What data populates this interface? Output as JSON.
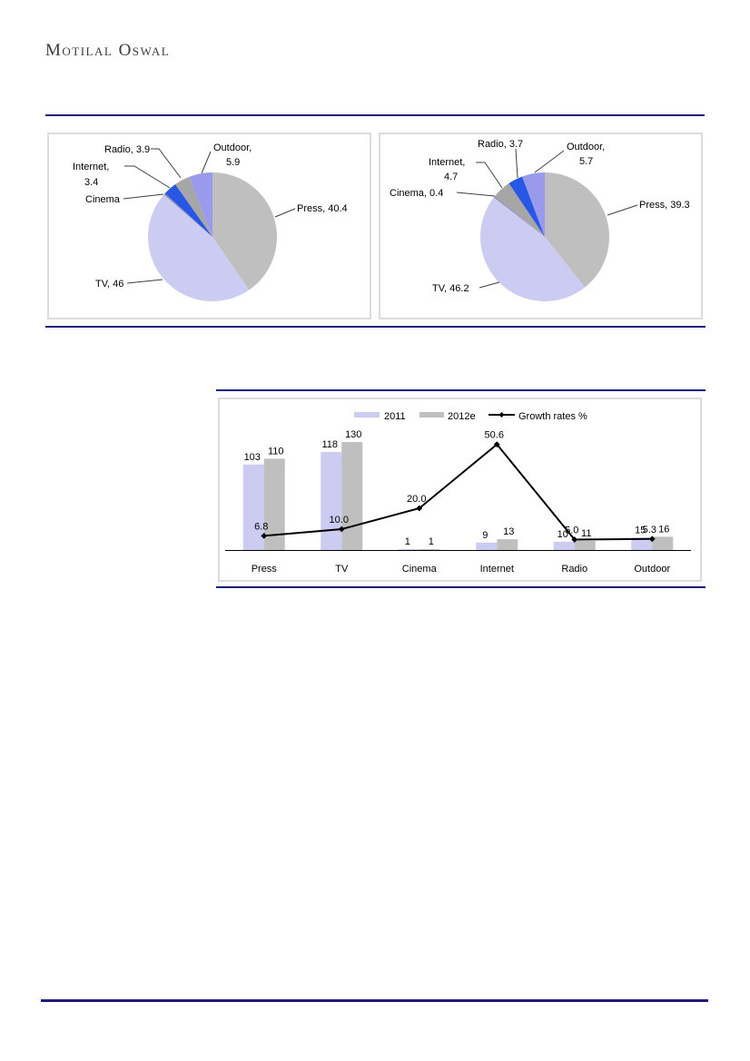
{
  "page": {
    "brand": "Motilal Oswal"
  },
  "colors": {
    "navy": "#1c1a7e",
    "lavender": "#ccccf2",
    "gray": "#bfbfbf",
    "gray_small": "#a6a6a6",
    "blue": "#2857e4",
    "periwinkle": "#9a9aec",
    "cinema_dark": "#8f8fb4",
    "box_border": "#dcdcdc",
    "leader": "#404040",
    "text": "#000000",
    "logo_text": "#3b3b3f"
  },
  "chart_data": [
    {
      "id": "pie_2011",
      "type": "pie",
      "legend_position": "none",
      "slices": [
        {
          "name": "Press",
          "value": 40.4,
          "label_lines": [
            "Press, 40.4"
          ],
          "color": "gray"
        },
        {
          "name": "TV",
          "value": 46.0,
          "label_lines": [
            "TV, 46"
          ],
          "color": "lavender"
        },
        {
          "name": "Cinema",
          "value": 0.4,
          "label_lines": [
            "Cinema"
          ],
          "color": "cinema_dark"
        },
        {
          "name": "Internet",
          "value": 3.4,
          "label_lines": [
            "Internet,",
            "3.4"
          ],
          "color": "blue"
        },
        {
          "name": "Radio",
          "value": 3.9,
          "label_lines": [
            "Radio, 3.9"
          ],
          "color": "gray_small"
        },
        {
          "name": "Outdoor",
          "value": 5.9,
          "label_lines": [
            "Outdoor,",
            "5.9"
          ],
          "color": "periwinkle"
        }
      ]
    },
    {
      "id": "pie_2012e",
      "type": "pie",
      "legend_position": "none",
      "slices": [
        {
          "name": "Press",
          "value": 39.3,
          "label_lines": [
            "Press, 39.3"
          ],
          "color": "gray"
        },
        {
          "name": "TV",
          "value": 46.2,
          "label_lines": [
            "TV, 46.2"
          ],
          "color": "lavender"
        },
        {
          "name": "Cinema",
          "value": 0.4,
          "label_lines": [
            "Cinema, 0.4"
          ],
          "color": "cinema_dark"
        },
        {
          "name": "Internet",
          "value": 4.7,
          "label_lines": [
            "Internet,",
            "4.7"
          ],
          "color": "gray_small"
        },
        {
          "name": "Radio",
          "value": 3.7,
          "label_lines": [
            "Radio, 3.7"
          ],
          "color": "blue"
        },
        {
          "name": "Outdoor",
          "value": 5.7,
          "label_lines": [
            "Outdoor,",
            "5.7"
          ],
          "color": "periwinkle"
        }
      ]
    },
    {
      "id": "combo",
      "type": "bar",
      "categories": [
        "Press",
        "TV",
        "Cinema",
        "Internet",
        "Radio",
        "Outdoor"
      ],
      "series": [
        {
          "name": "2011",
          "type": "bar",
          "color": "lavender",
          "values": [
            103,
            118,
            1,
            9,
            10,
            15
          ],
          "labels": [
            "103",
            "118",
            "1",
            "9",
            "10",
            "15"
          ]
        },
        {
          "name": "2012e",
          "type": "bar",
          "color": "gray",
          "values": [
            110,
            130,
            1,
            13,
            11,
            16
          ],
          "labels": [
            "110",
            "130",
            "1",
            "13",
            "11",
            "16"
          ]
        },
        {
          "name": "Growth rates %",
          "type": "line",
          "color": "text",
          "values": [
            6.8,
            10.0,
            20.0,
            50.6,
            5.0,
            5.3
          ],
          "labels": [
            "6.8",
            "10.0",
            "20.0",
            "50.6",
            "5.0",
            "5.3"
          ]
        }
      ],
      "legend": [
        "2011",
        "2012e",
        "Growth rates %"
      ],
      "legend_position": "top",
      "grid": false
    }
  ]
}
